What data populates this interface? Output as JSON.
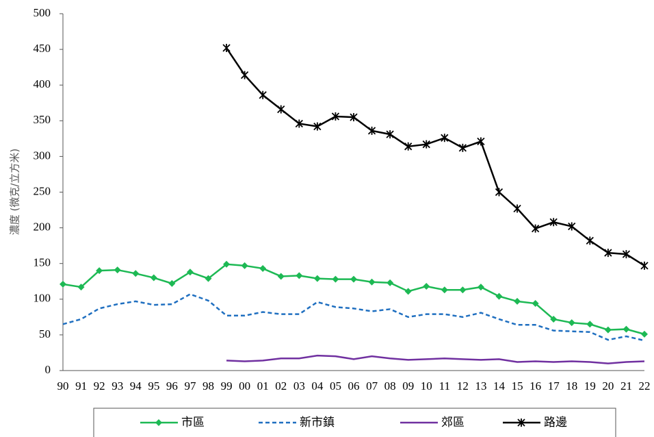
{
  "chart_data": {
    "type": "line",
    "y_label": "濃度 (微克/立方米)",
    "categories": [
      "90",
      "91",
      "92",
      "93",
      "94",
      "95",
      "96",
      "97",
      "98",
      "99",
      "00",
      "01",
      "02",
      "03",
      "04",
      "05",
      "06",
      "07",
      "08",
      "09",
      "10",
      "11",
      "12",
      "13",
      "14",
      "15",
      "16",
      "17",
      "18",
      "19",
      "20",
      "21",
      "22"
    ],
    "series": [
      {
        "name": "市區",
        "color": "#1db954",
        "marker": "diamond",
        "dash": "solid",
        "values": [
          121,
          117,
          140,
          141,
          136,
          130,
          122,
          138,
          129,
          149,
          147,
          143,
          132,
          133,
          129,
          128,
          128,
          124,
          123,
          111,
          118,
          113,
          113,
          117,
          104,
          97,
          94,
          72,
          67,
          65,
          57,
          58,
          51
        ]
      },
      {
        "name": "新市鎮",
        "color": "#1f6fc0",
        "marker": "none",
        "dash": "dashed",
        "values": [
          65,
          72,
          87,
          93,
          97,
          92,
          93,
          107,
          98,
          77,
          77,
          82,
          79,
          79,
          96,
          89,
          87,
          83,
          86,
          75,
          79,
          79,
          75,
          81,
          72,
          64,
          64,
          56,
          55,
          54,
          43,
          48,
          42
        ]
      },
      {
        "name": "郊區",
        "color": "#7030a0",
        "marker": "none",
        "dash": "solid",
        "values": [
          null,
          null,
          null,
          null,
          null,
          null,
          null,
          null,
          null,
          14,
          13,
          14,
          17,
          17,
          21,
          20,
          16,
          20,
          17,
          15,
          16,
          17,
          16,
          15,
          16,
          12,
          13,
          12,
          13,
          12,
          10,
          12,
          13
        ]
      },
      {
        "name": "路邊",
        "color": "#000000",
        "marker": "star",
        "dash": "solid",
        "values": [
          null,
          null,
          null,
          null,
          null,
          null,
          null,
          null,
          null,
          452,
          414,
          386,
          366,
          346,
          342,
          356,
          355,
          336,
          331,
          314,
          317,
          326,
          312,
          321,
          250,
          227,
          199,
          208,
          202,
          182,
          165,
          163,
          147
        ]
      }
    ],
    "ylim": [
      0,
      500
    ],
    "yticks": [
      0,
      50,
      100,
      150,
      200,
      250,
      300,
      350,
      400,
      450,
      500
    ],
    "grid": false,
    "legend": "bottom"
  }
}
